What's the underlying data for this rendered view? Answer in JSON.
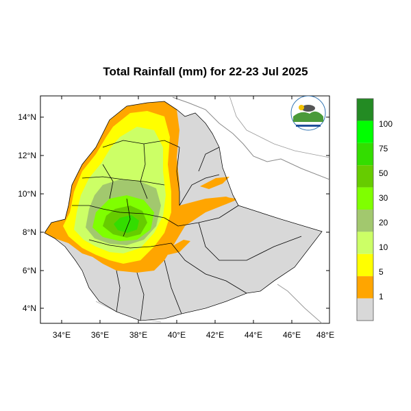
{
  "map": {
    "title": "Total Rainfall (mm) for 22-23 Jul 2025",
    "lat_labels": [
      "14°N",
      "12°N",
      "10°N",
      "8°N",
      "6°N",
      "4°N"
    ],
    "lon_labels": [
      "34°E",
      "36°E",
      "38°E",
      "40°E",
      "42°E",
      "44°E",
      "46°E",
      "48°E"
    ],
    "lon_range": [
      33,
      48
    ],
    "lat_range": [
      3.2,
      15
    ],
    "colorbar": {
      "labels": [
        "100",
        "75",
        "50",
        "30",
        "20",
        "10",
        "5",
        "1"
      ],
      "colors": [
        "#238b23",
        "#00ff00",
        "#33dd00",
        "#66cc00",
        "#7fff00",
        "#a2c86e",
        "#ccff66",
        "#ffff00",
        "#ffa500",
        "#d8d8d8"
      ]
    },
    "logo": {
      "name": "agency-logo",
      "text": "Ethiopian Meteorology Institute"
    }
  }
}
